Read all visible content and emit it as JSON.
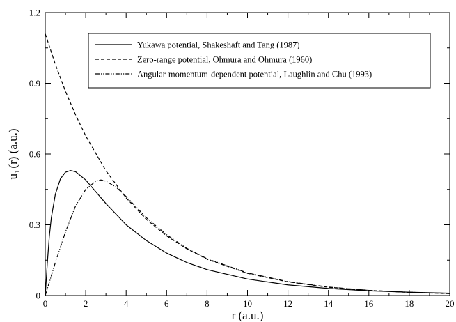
{
  "chart_data": {
    "type": "line",
    "xlabel": "r (a.u.)",
    "ylabel_main": "u",
    "ylabel_sub": "1",
    "ylabel_rest": "(r) (a.u.)",
    "xlim": [
      0,
      20
    ],
    "ylim": [
      0,
      1.2
    ],
    "x_ticks": [
      0,
      2,
      4,
      6,
      8,
      10,
      12,
      14,
      16,
      18,
      20
    ],
    "y_ticks": [
      0,
      0.3,
      0.6,
      0.9,
      1.2
    ],
    "x_tick_labels": [
      "0",
      "2",
      "4",
      "6",
      "8",
      "10",
      "12",
      "14",
      "16",
      "18",
      "20"
    ],
    "y_tick_labels": [
      "0",
      "0.3",
      "0.6",
      "0.9",
      "1.2"
    ],
    "grid": false,
    "legend_position": "top-right",
    "series": [
      {
        "name": "Yukawa potential, Shakeshaft and Tang (1987)",
        "style": "solid",
        "color": "#000000",
        "x": [
          0,
          0.1,
          0.2,
          0.3,
          0.5,
          0.75,
          1.0,
          1.25,
          1.5,
          2.0,
          2.5,
          3.0,
          4.0,
          5.0,
          6.0,
          7.0,
          8.0,
          10.0,
          12.0,
          14.0,
          16.0,
          18.0,
          20.0
        ],
        "y": [
          0,
          0.135,
          0.25,
          0.33,
          0.43,
          0.495,
          0.523,
          0.53,
          0.525,
          0.49,
          0.44,
          0.39,
          0.3,
          0.233,
          0.18,
          0.14,
          0.11,
          0.07,
          0.045,
          0.03,
          0.02,
          0.014,
          0.01
        ]
      },
      {
        "name": "Zero-range potential, Ohmura and Ohmura (1960)",
        "style": "dashed",
        "color": "#000000",
        "x": [
          0,
          0.5,
          1,
          1.5,
          2,
          3,
          4,
          5,
          6,
          7,
          8,
          10,
          12,
          14,
          16,
          18,
          20
        ],
        "y": [
          1.11,
          0.98,
          0.866,
          0.766,
          0.677,
          0.529,
          0.414,
          0.323,
          0.253,
          0.198,
          0.154,
          0.094,
          0.058,
          0.035,
          0.022,
          0.013,
          0.008
        ]
      },
      {
        "name": "Angular-momentum-dependent potential, Laughlin and Chu (1993)",
        "style": "dashdotdot",
        "color": "#000000",
        "x": [
          0,
          0.25,
          0.5,
          1.0,
          1.5,
          2.0,
          2.5,
          2.75,
          3.0,
          3.5,
          4.0,
          5.0,
          6.0,
          7.0,
          8.0,
          10.0,
          12.0,
          14.0,
          16.0,
          18.0,
          20.0
        ],
        "y": [
          0,
          0.07,
          0.14,
          0.27,
          0.38,
          0.45,
          0.485,
          0.49,
          0.485,
          0.46,
          0.42,
          0.33,
          0.258,
          0.2,
          0.156,
          0.096,
          0.059,
          0.036,
          0.022,
          0.014,
          0.009
        ]
      }
    ]
  }
}
